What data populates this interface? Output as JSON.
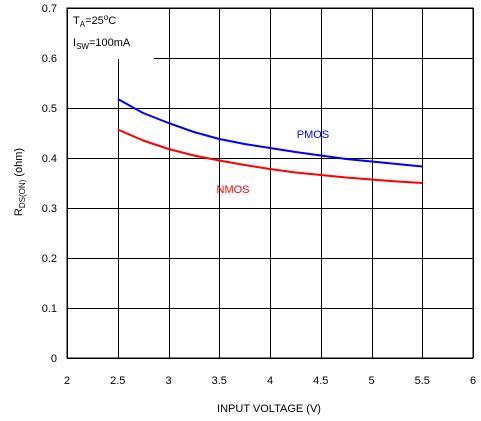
{
  "chart_data": {
    "type": "line",
    "xlabel": "INPUT VOLTAGE (V)",
    "ylabel": {
      "main": "R",
      "sub": "DS(ON)",
      "tail": " (ohm)"
    },
    "xlim": [
      2,
      6
    ],
    "ylim": [
      0,
      0.7
    ],
    "xticks": [
      2,
      2.5,
      3,
      3.5,
      4,
      4.5,
      5,
      5.5,
      6
    ],
    "xtick_labels": [
      "2",
      "2.5",
      "3",
      "3.5",
      "4",
      "4.5",
      "5",
      "5.5",
      "6"
    ],
    "yticks": [
      0,
      0.1,
      0.2,
      0.3,
      0.4,
      0.5,
      0.6,
      0.7
    ],
    "ytick_labels": [
      "0",
      "0.1",
      "0.2",
      "0.3",
      "0.4",
      "0.5",
      "0.6",
      "0.7"
    ],
    "grid": true,
    "annotations": [
      {
        "main": "T",
        "sub": "A",
        "rest": "=25",
        "sup": "o",
        "end": "C"
      },
      {
        "main": "I",
        "sub": "SW",
        "rest": "=100mA",
        "sup": "",
        "end": ""
      }
    ],
    "series": [
      {
        "name": "PMOS",
        "color": "#0000ff",
        "x": [
          2.5,
          2.75,
          3.0,
          3.25,
          3.5,
          3.75,
          4.0,
          4.25,
          4.5,
          4.75,
          5.0,
          5.25,
          5.5
        ],
        "values": [
          0.518,
          0.49,
          0.47,
          0.452,
          0.438,
          0.428,
          0.42,
          0.412,
          0.405,
          0.398,
          0.393,
          0.388,
          0.383
        ]
      },
      {
        "name": "NMOS",
        "color": "#ff0000",
        "x": [
          2.5,
          2.75,
          3.0,
          3.25,
          3.5,
          3.75,
          4.0,
          4.25,
          4.5,
          4.75,
          5.0,
          5.25,
          5.5
        ],
        "values": [
          0.457,
          0.435,
          0.418,
          0.405,
          0.395,
          0.386,
          0.378,
          0.371,
          0.366,
          0.361,
          0.357,
          0.353,
          0.35
        ]
      }
    ]
  }
}
